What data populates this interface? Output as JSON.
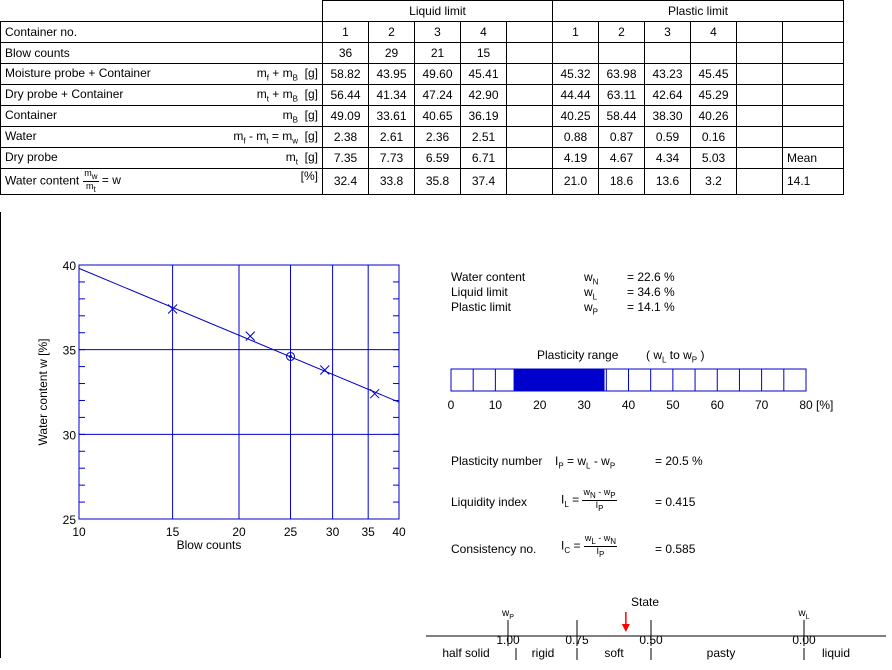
{
  "table": {
    "group_liquid": "Liquid limit",
    "group_plastic": "Plastic limit",
    "container_no_label": "Container no.",
    "container_numbers_liquid": [
      "1",
      "2",
      "3",
      "4"
    ],
    "container_numbers_plastic": [
      "1",
      "2",
      "3",
      "4"
    ],
    "rows": [
      {
        "label": "Blow counts",
        "symbol": "",
        "unit": "",
        "liquid": [
          "36",
          "29",
          "21",
          "15"
        ],
        "plastic": [
          "",
          "",
          "",
          ""
        ],
        "extra": ""
      },
      {
        "label": "Moisture probe + Container",
        "symbol": "mf + mB",
        "unit": "[g]",
        "liquid": [
          "58.82",
          "43.95",
          "49.60",
          "45.41"
        ],
        "plastic": [
          "45.32",
          "63.98",
          "43.23",
          "45.45"
        ],
        "extra": ""
      },
      {
        "label": "Dry probe + Container",
        "symbol": "mt + mB",
        "unit": "[g]",
        "liquid": [
          "56.44",
          "41.34",
          "47.24",
          "42.90"
        ],
        "plastic": [
          "44.44",
          "63.11",
          "42.64",
          "45.29"
        ],
        "extra": ""
      },
      {
        "label": "Container",
        "symbol": "mB",
        "unit": "[g]",
        "liquid": [
          "49.09",
          "33.61",
          "40.65",
          "36.19"
        ],
        "plastic": [
          "40.25",
          "58.44",
          "38.30",
          "40.26"
        ],
        "extra": ""
      },
      {
        "label": "Water",
        "symbol": "mf - mt = mw",
        "unit": "[g]",
        "liquid": [
          "2.38",
          "2.61",
          "2.36",
          "2.51"
        ],
        "plastic": [
          "0.88",
          "0.87",
          "0.59",
          "0.16"
        ],
        "extra": ""
      },
      {
        "label": "Dry probe",
        "symbol": "mt",
        "unit": "[g]",
        "liquid": [
          "7.35",
          "7.73",
          "6.59",
          "6.71"
        ],
        "plastic": [
          "4.19",
          "4.67",
          "4.34",
          "5.03"
        ],
        "extra": "Mean"
      },
      {
        "label": "Water content",
        "symbol": "= w",
        "unit": "[%]",
        "liquid": [
          "32.4",
          "33.8",
          "35.8",
          "37.4"
        ],
        "plastic": [
          "21.0",
          "18.6",
          "13.6",
          "3.2"
        ],
        "extra": "14.1"
      }
    ]
  },
  "results": {
    "water_content_label": "Water content",
    "water_content_symbol": "wN",
    "water_content_value": "= 22.6 %",
    "liquid_limit_label": "Liquid limit",
    "liquid_limit_symbol": "wL",
    "liquid_limit_value": "= 34.6 %",
    "plastic_limit_label": "Plastic limit",
    "plastic_limit_symbol": "wP",
    "plastic_limit_value": "= 14.1 %",
    "plasticity_range_title": "Plasticity range",
    "plasticity_range_formula": "( wL to wP )",
    "plasticity_range_from": 14.1,
    "plasticity_range_to": 34.6,
    "scale_ticks": [
      "0",
      "10",
      "20",
      "30",
      "40",
      "50",
      "60",
      "70",
      "80"
    ],
    "scale_unit": "[%]",
    "plasticity_number_label": "Plasticity number",
    "plasticity_number_formula": "IP = wL - wP",
    "plasticity_number_value": "= 20.5 %",
    "liquidity_index_label": "Liquidity index",
    "liquidity_index_value": "= 0.415",
    "consistency_label": "Consistency no.",
    "consistency_value": "= 0.585"
  },
  "state_scale": {
    "title": "State",
    "ticks": [
      "1.00",
      "0.75",
      "0.50",
      "0.00"
    ],
    "labels": [
      "half solid",
      "rigid",
      "soft",
      "pasty",
      "liquid"
    ],
    "wp_label": "wP",
    "wl_label": "wL",
    "marker_value": 0.585,
    "marker_color": "#ff0000"
  },
  "chart_data": {
    "type": "scatter",
    "title": "",
    "xlabel": "Blow counts",
    "ylabel": "Water content w [%]",
    "x_scale": "log",
    "xlim": [
      10,
      40
    ],
    "ylim": [
      25,
      40
    ],
    "x_ticks": [
      "10",
      "15",
      "20",
      "25",
      "30",
      "35",
      "40"
    ],
    "y_ticks": [
      "25",
      "30",
      "35",
      "40"
    ],
    "points": [
      {
        "x": 15,
        "y": 37.4
      },
      {
        "x": 21,
        "y": 35.8
      },
      {
        "x": 29,
        "y": 33.8
      },
      {
        "x": 36,
        "y": 32.4
      }
    ],
    "liquid_limit_point": {
      "x": 25,
      "y": 34.6
    },
    "fit_line": [
      {
        "x": 10,
        "y": 39.8
      },
      {
        "x": 40,
        "y": 31.9
      }
    ],
    "grid": true,
    "color": "#0000cc"
  }
}
